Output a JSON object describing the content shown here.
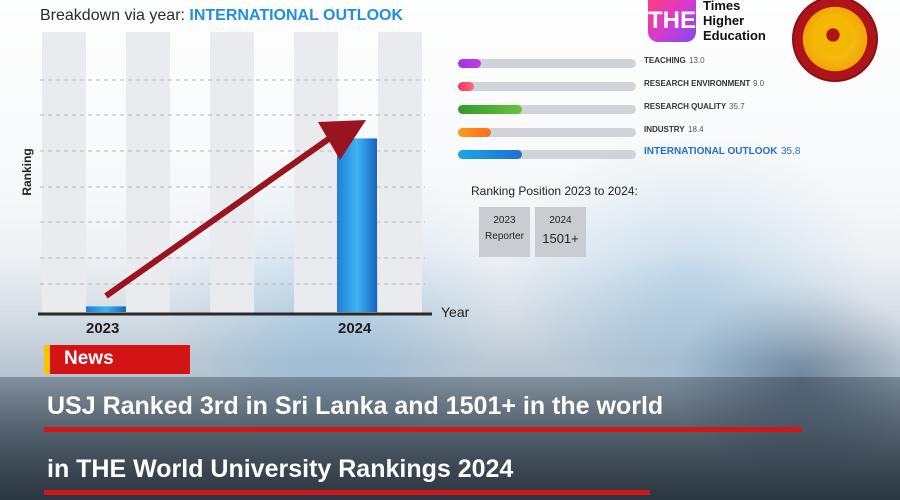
{
  "chart_title": {
    "prefix": "Breakdown via year: ",
    "highlight": "INTERNATIONAL OUTLOOK"
  },
  "chart_data": {
    "type": "bar",
    "categories": [
      "2023",
      "2024"
    ],
    "values": [
      0.02,
      0.62
    ],
    "xlabel": "Year",
    "ylabel": "Ranking",
    "grid": true,
    "annotation": "upward arrow from 2023 to 2024"
  },
  "metrics": [
    {
      "label": "TEACHING",
      "value": "13.0",
      "value_num": 13.0,
      "gradient": [
        "#9b36e8",
        "#c23be0"
      ]
    },
    {
      "label": "RESEARCH ENVIRONMENT",
      "value": "9.0",
      "value_num": 9.0,
      "gradient": [
        "#f0365c",
        "#ff6c7a"
      ]
    },
    {
      "label": "RESEARCH QUALITY",
      "value": "35.7",
      "value_num": 35.7,
      "gradient": [
        "#2e9a2e",
        "#6cc23a"
      ]
    },
    {
      "label": "INDUSTRY",
      "value": "18.4",
      "value_num": 18.4,
      "gradient": [
        "#ff9a1e",
        "#ff6b1e"
      ]
    },
    {
      "label": "INTERNATIONAL OUTLOOK",
      "value": "35.8",
      "value_num": 35.8,
      "gradient": [
        "#1aa7e8",
        "#1f6fd0"
      ],
      "highlight": true
    }
  ],
  "ranking": {
    "title": "Ranking Position 2023 to 2024:",
    "boxes": [
      {
        "year": "2023",
        "value": "Reporter"
      },
      {
        "year": "2024",
        "value": "1501+"
      }
    ]
  },
  "logo": {
    "mark": "THE",
    "lines": [
      "Times",
      "Higher",
      "Education"
    ]
  },
  "tag": "News",
  "headline": {
    "line1": "USJ Ranked 3rd in Sri Lanka and 1501+ in the world",
    "line2": "in THE World University Rankings 2024"
  },
  "colors": {
    "accent_blue": "#1f8fe0",
    "arrow": "#9a1420",
    "news_red": "#d41414",
    "news_yellow": "#f6c400"
  }
}
